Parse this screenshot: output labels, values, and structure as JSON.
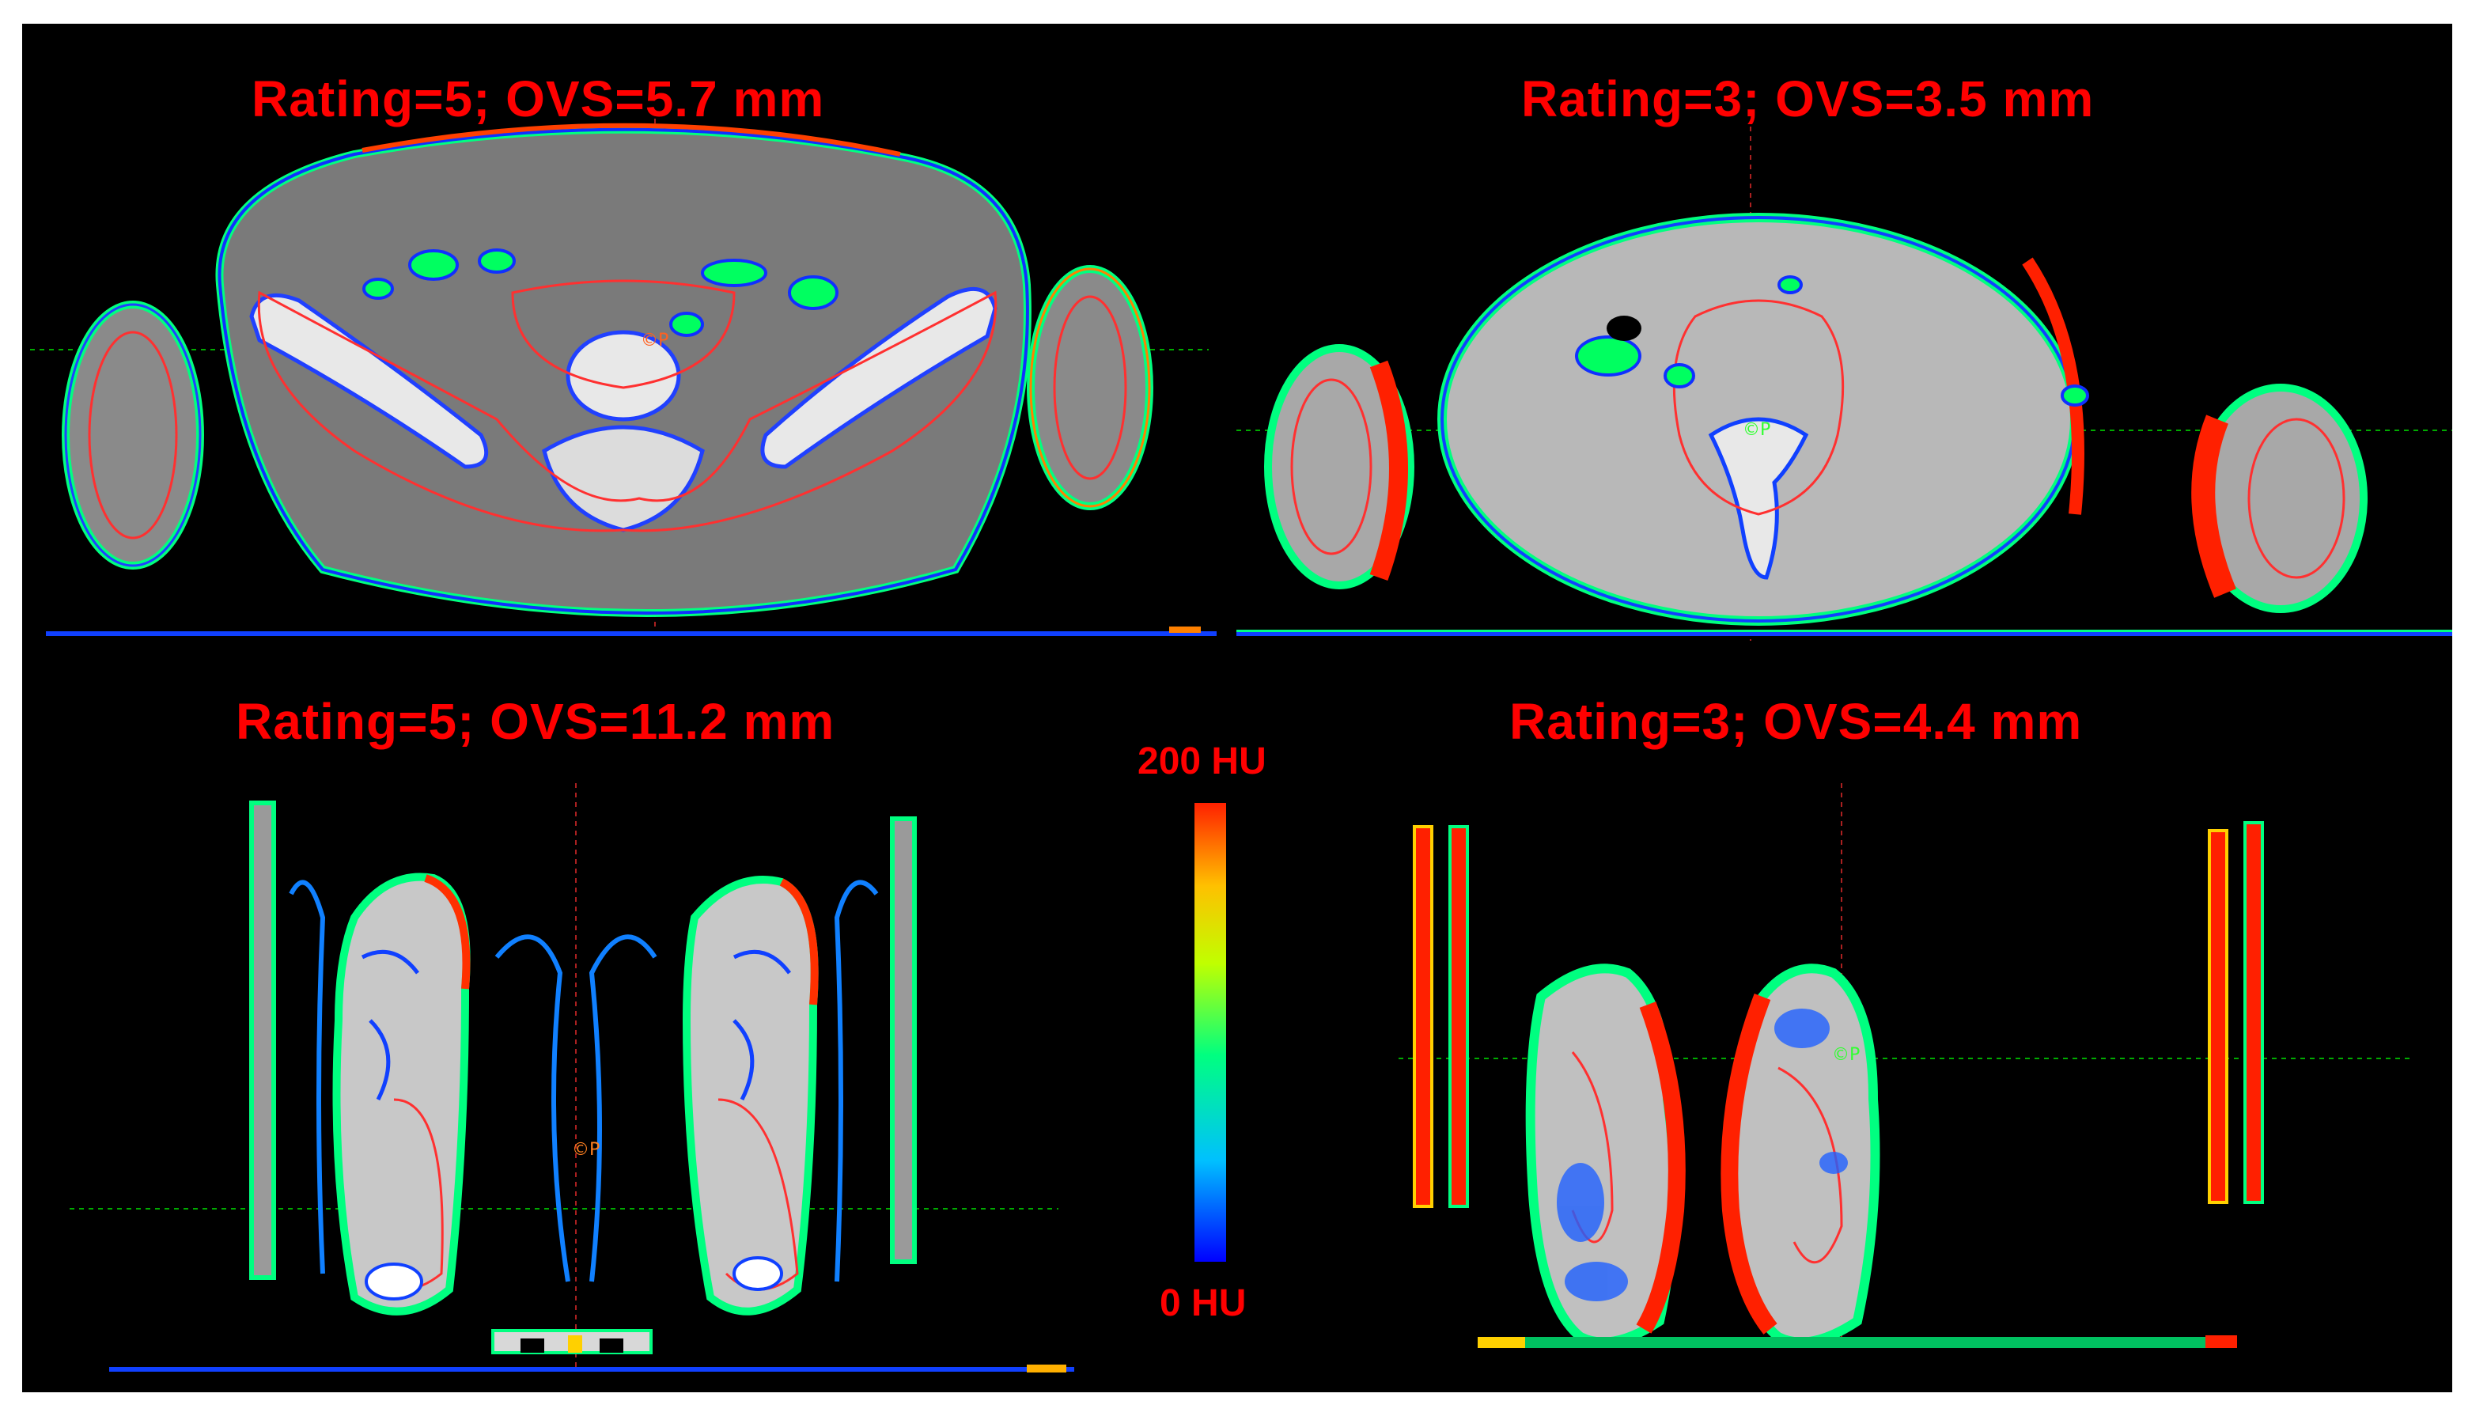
{
  "figure": {
    "panels": [
      {
        "id": "top-left",
        "title": "Rating=5; OVS=5.7 mm",
        "view": "axial pelvis CT"
      },
      {
        "id": "top-right",
        "title": "Rating=3; OVS=3.5 mm",
        "view": "axial abdomen CT"
      },
      {
        "id": "bottom-left",
        "title": "Rating=5; OVS=11.2 mm",
        "view": "coronal legs CT"
      },
      {
        "id": "bottom-right",
        "title": "Rating=3; OVS=4.4 mm",
        "view": "coronal legs CT"
      }
    ],
    "colorbar": {
      "max_label": "200 HU",
      "min_label": "0 HU",
      "colors": [
        "#0000ff",
        "#00c0ff",
        "#00ff80",
        "#c0ff00",
        "#ffc000",
        "#ff2000"
      ]
    },
    "marker_glyph": "©P",
    "colors": {
      "title": "#ff0000",
      "background": "#000000",
      "contour": "#ff3030",
      "crosshair": "#00aa00"
    }
  }
}
